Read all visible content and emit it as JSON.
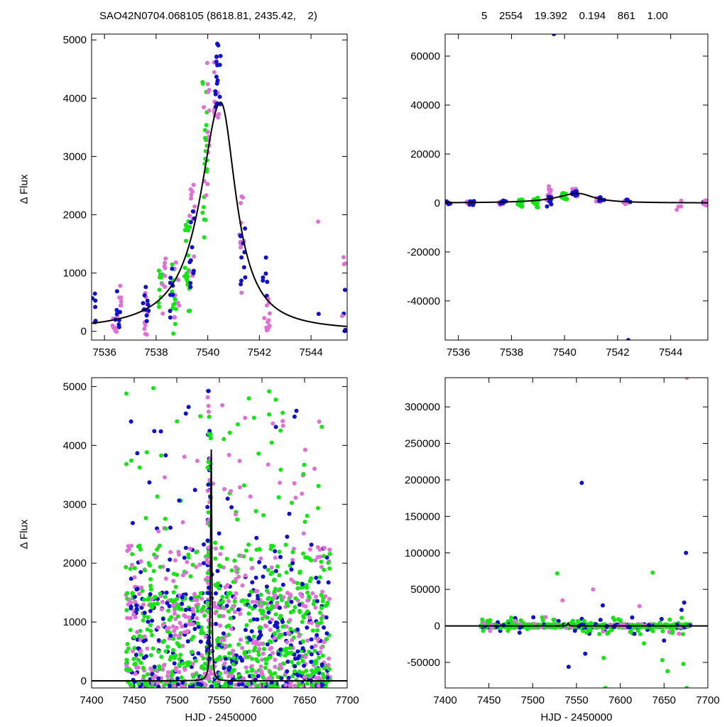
{
  "header": {
    "left": "SAO42N0704.068105 (8618.81, 2435.42,    2)",
    "right": "5    2554    19.392    0.194    861    1.00"
  },
  "colors": {
    "blue": "#1010d0",
    "magenta": "#e070d8",
    "green": "#10e810",
    "curve": "#000000"
  },
  "chart_data": [
    {
      "id": "top-left",
      "type": "scatter",
      "ylabel": "Δ Flux",
      "xlabel": "",
      "xlim": [
        7535.5,
        7545.4
      ],
      "ylim": [
        -150,
        5100
      ],
      "xticks": [
        7536,
        7538,
        7540,
        7542,
        7544
      ],
      "yticks": [
        0,
        1000,
        2000,
        3000,
        4000,
        5000
      ],
      "model": {
        "name": "fit",
        "x0": 7540.5,
        "amplitude": 3930,
        "left_width": 0.95,
        "right_width": 0.72
      },
      "clusters": [
        {
          "series": "blue",
          "x": 7535.6,
          "n": 6,
          "ylo": -60,
          "yhi": 650
        },
        {
          "series": "magenta",
          "x": 7536.4,
          "n": 8,
          "ylo": -80,
          "yhi": 300
        },
        {
          "series": "blue",
          "x": 7536.5,
          "n": 8,
          "ylo": -80,
          "yhi": 800
        },
        {
          "series": "magenta",
          "x": 7536.6,
          "n": 6,
          "ylo": 400,
          "yhi": 850
        },
        {
          "series": "magenta",
          "x": 7537.6,
          "n": 10,
          "ylo": -60,
          "yhi": 700
        },
        {
          "series": "blue",
          "x": 7537.6,
          "n": 10,
          "ylo": -80,
          "yhi": 800
        },
        {
          "series": "green",
          "x": 7538.2,
          "n": 10,
          "ylo": 200,
          "yhi": 1100
        },
        {
          "series": "magenta",
          "x": 7538.3,
          "n": 8,
          "ylo": 300,
          "yhi": 1250
        },
        {
          "series": "green",
          "x": 7538.7,
          "n": 14,
          "ylo": -50,
          "yhi": 1300
        },
        {
          "series": "magenta",
          "x": 7538.8,
          "n": 8,
          "ylo": 100,
          "yhi": 1200
        },
        {
          "series": "blue",
          "x": 7538.6,
          "n": 8,
          "ylo": 100,
          "yhi": 1100
        },
        {
          "series": "green",
          "x": 7539.2,
          "n": 20,
          "ylo": 300,
          "yhi": 1900
        },
        {
          "series": "magenta",
          "x": 7539.4,
          "n": 12,
          "ylo": 800,
          "yhi": 2600
        },
        {
          "series": "blue",
          "x": 7539.4,
          "n": 10,
          "ylo": 700,
          "yhi": 2200
        },
        {
          "series": "green",
          "x": 7539.9,
          "n": 22,
          "ylo": 1600,
          "yhi": 4300
        },
        {
          "series": "magenta",
          "x": 7539.95,
          "n": 14,
          "ylo": 2200,
          "yhi": 4650
        },
        {
          "series": "magenta",
          "x": 7540.35,
          "n": 16,
          "ylo": 3600,
          "yhi": 4800
        },
        {
          "series": "blue",
          "x": 7540.4,
          "n": 16,
          "ylo": 3800,
          "yhi": 4980
        },
        {
          "series": "magenta",
          "x": 7541.3,
          "n": 12,
          "ylo": 600,
          "yhi": 2550
        },
        {
          "series": "blue",
          "x": 7541.35,
          "n": 10,
          "ylo": 800,
          "yhi": 1800
        },
        {
          "series": "blue",
          "x": 7542.2,
          "n": 6,
          "ylo": 300,
          "yhi": 1750
        },
        {
          "series": "magenta",
          "x": 7542.3,
          "n": 12,
          "ylo": 0,
          "yhi": 600
        },
        {
          "series": "magenta",
          "x": 7544.3,
          "n": 1,
          "ylo": 1880,
          "yhi": 1880
        },
        {
          "series": "blue",
          "x": 7544.3,
          "n": 1,
          "ylo": 300,
          "yhi": 300
        },
        {
          "series": "blue",
          "x": 7545.3,
          "n": 5,
          "ylo": 0,
          "yhi": 900
        },
        {
          "series": "magenta",
          "x": 7545.3,
          "n": 4,
          "ylo": 100,
          "yhi": 1300
        }
      ]
    },
    {
      "id": "top-right",
      "type": "scatter",
      "ylabel": "",
      "xlabel": "",
      "xlim": [
        7535.5,
        7545.4
      ],
      "ylim": [
        -56000,
        69000
      ],
      "xticks": [
        7536,
        7538,
        7540,
        7542,
        7544
      ],
      "yticks": [
        -40000,
        -20000,
        0,
        20000,
        40000,
        60000
      ],
      "model": {
        "name": "fit",
        "x0": 7540.5,
        "amplitude": 3930,
        "left_width": 0.95,
        "right_width": 0.72
      },
      "clusters": [
        {
          "series": "blue",
          "x": 7535.6,
          "n": 6,
          "ylo": -800,
          "yhi": 1000
        },
        {
          "series": "magenta",
          "x": 7536.4,
          "n": 10,
          "ylo": -900,
          "yhi": 900
        },
        {
          "series": "blue",
          "x": 7536.5,
          "n": 8,
          "ylo": -800,
          "yhi": 800
        },
        {
          "series": "magenta",
          "x": 7537.6,
          "n": 10,
          "ylo": -1000,
          "yhi": 1200
        },
        {
          "series": "blue",
          "x": 7537.7,
          "n": 6,
          "ylo": -800,
          "yhi": 1000
        },
        {
          "series": "green",
          "x": 7538.3,
          "n": 14,
          "ylo": -1500,
          "yhi": 1500
        },
        {
          "series": "green",
          "x": 7538.9,
          "n": 16,
          "ylo": -2000,
          "yhi": 2500
        },
        {
          "series": "magenta",
          "x": 7539.4,
          "n": 14,
          "ylo": 500,
          "yhi": 7000
        },
        {
          "series": "blue",
          "x": 7539.4,
          "n": 8,
          "ylo": -1500,
          "yhi": 3000
        },
        {
          "series": "green",
          "x": 7540.0,
          "n": 16,
          "ylo": 1500,
          "yhi": 4500
        },
        {
          "series": "magenta",
          "x": 7540.4,
          "n": 14,
          "ylo": 2500,
          "yhi": 6000
        },
        {
          "series": "blue",
          "x": 7540.4,
          "n": 10,
          "ylo": 3000,
          "yhi": 5000
        },
        {
          "series": "magenta",
          "x": 7541.3,
          "n": 10,
          "ylo": 500,
          "yhi": 2500
        },
        {
          "series": "blue",
          "x": 7541.4,
          "n": 6,
          "ylo": 800,
          "yhi": 2500
        },
        {
          "series": "magenta",
          "x": 7542.3,
          "n": 10,
          "ylo": -500,
          "yhi": 1200
        },
        {
          "series": "blue",
          "x": 7542.4,
          "n": 4,
          "ylo": 0,
          "yhi": 2000
        },
        {
          "series": "magenta",
          "x": 7544.3,
          "n": 4,
          "ylo": -3000,
          "yhi": 2000
        },
        {
          "series": "blue",
          "x": 7545.3,
          "n": 4,
          "ylo": -500,
          "yhi": 1000
        },
        {
          "series": "magenta",
          "x": 7545.3,
          "n": 6,
          "ylo": -1000,
          "yhi": 1500
        }
      ],
      "points": [
        {
          "series": "blue",
          "x": 7539.6,
          "y": 69000
        },
        {
          "series": "blue",
          "x": 7542.4,
          "y": -56000
        }
      ]
    },
    {
      "id": "bottom-left",
      "type": "scatter",
      "ylabel": "Δ Flux",
      "xlabel": "HJD - 2450000",
      "xlim": [
        7400,
        7700
      ],
      "ylim": [
        -120,
        5150
      ],
      "xticks": [
        7400,
        7450,
        7500,
        7550,
        7600,
        7650,
        7700
      ],
      "yticks": [
        0,
        1000,
        2000,
        3000,
        4000,
        5000
      ],
      "model": {
        "name": "fit",
        "x0": 7540.5,
        "amplitude": 3930,
        "left_width": 0.95,
        "right_width": 0.72
      },
      "spread": {
        "xmin": 7440,
        "xmax": 7680,
        "n": 1400,
        "weights": {
          "green": 0.45,
          "magenta": 0.33,
          "blue": 0.22
        }
      },
      "column": {
        "x": 7538,
        "width": 4,
        "n": 90,
        "yhi": 4980
      }
    },
    {
      "id": "bottom-right",
      "type": "scatter",
      "ylabel": "",
      "xlabel": "HJD - 2450000",
      "xlim": [
        7400,
        7700
      ],
      "ylim": [
        -85000,
        340000
      ],
      "xticks": [
        7400,
        7450,
        7500,
        7550,
        7600,
        7650,
        7700
      ],
      "yticks": [
        -50000,
        0,
        50000,
        100000,
        150000,
        200000,
        250000,
        300000
      ],
      "model": {
        "name": "fit",
        "x0": 7540.5,
        "amplitude": 3930,
        "left_width": 0.95,
        "right_width": 0.72
      },
      "spread": {
        "xmin": 7440,
        "xmax": 7680,
        "n": 700,
        "weights": {
          "green": 0.6,
          "magenta": 0.2,
          "blue": 0.2
        }
      },
      "points": [
        {
          "series": "magenta",
          "x": 7676,
          "y": 340000
        },
        {
          "series": "blue",
          "x": 7556,
          "y": 196000
        },
        {
          "series": "blue",
          "x": 7675,
          "y": 100000
        },
        {
          "series": "green",
          "x": 7637,
          "y": 73000
        },
        {
          "series": "green",
          "x": 7528,
          "y": 72000
        },
        {
          "series": "magenta",
          "x": 7569,
          "y": 50000
        },
        {
          "series": "magenta",
          "x": 7534,
          "y": 35000
        },
        {
          "series": "blue",
          "x": 7673,
          "y": 32000
        },
        {
          "series": "blue",
          "x": 7580,
          "y": 28000
        },
        {
          "series": "magenta",
          "x": 7622,
          "y": 27000
        },
        {
          "series": "blue",
          "x": 7670,
          "y": 22000
        },
        {
          "series": "blue",
          "x": 7541,
          "y": -56000
        },
        {
          "series": "green",
          "x": 7583,
          "y": -85000
        },
        {
          "series": "green",
          "x": 7676,
          "y": -85000
        },
        {
          "series": "green",
          "x": 7654,
          "y": -62000
        },
        {
          "series": "green",
          "x": 7672,
          "y": -52000
        },
        {
          "series": "green",
          "x": 7648,
          "y": -47000
        },
        {
          "series": "blue",
          "x": 7560,
          "y": -38000
        },
        {
          "series": "green",
          "x": 7581,
          "y": -44000
        },
        {
          "series": "blue",
          "x": 7650,
          "y": -20000
        },
        {
          "series": "green",
          "x": 7627,
          "y": -24000
        }
      ]
    }
  ]
}
